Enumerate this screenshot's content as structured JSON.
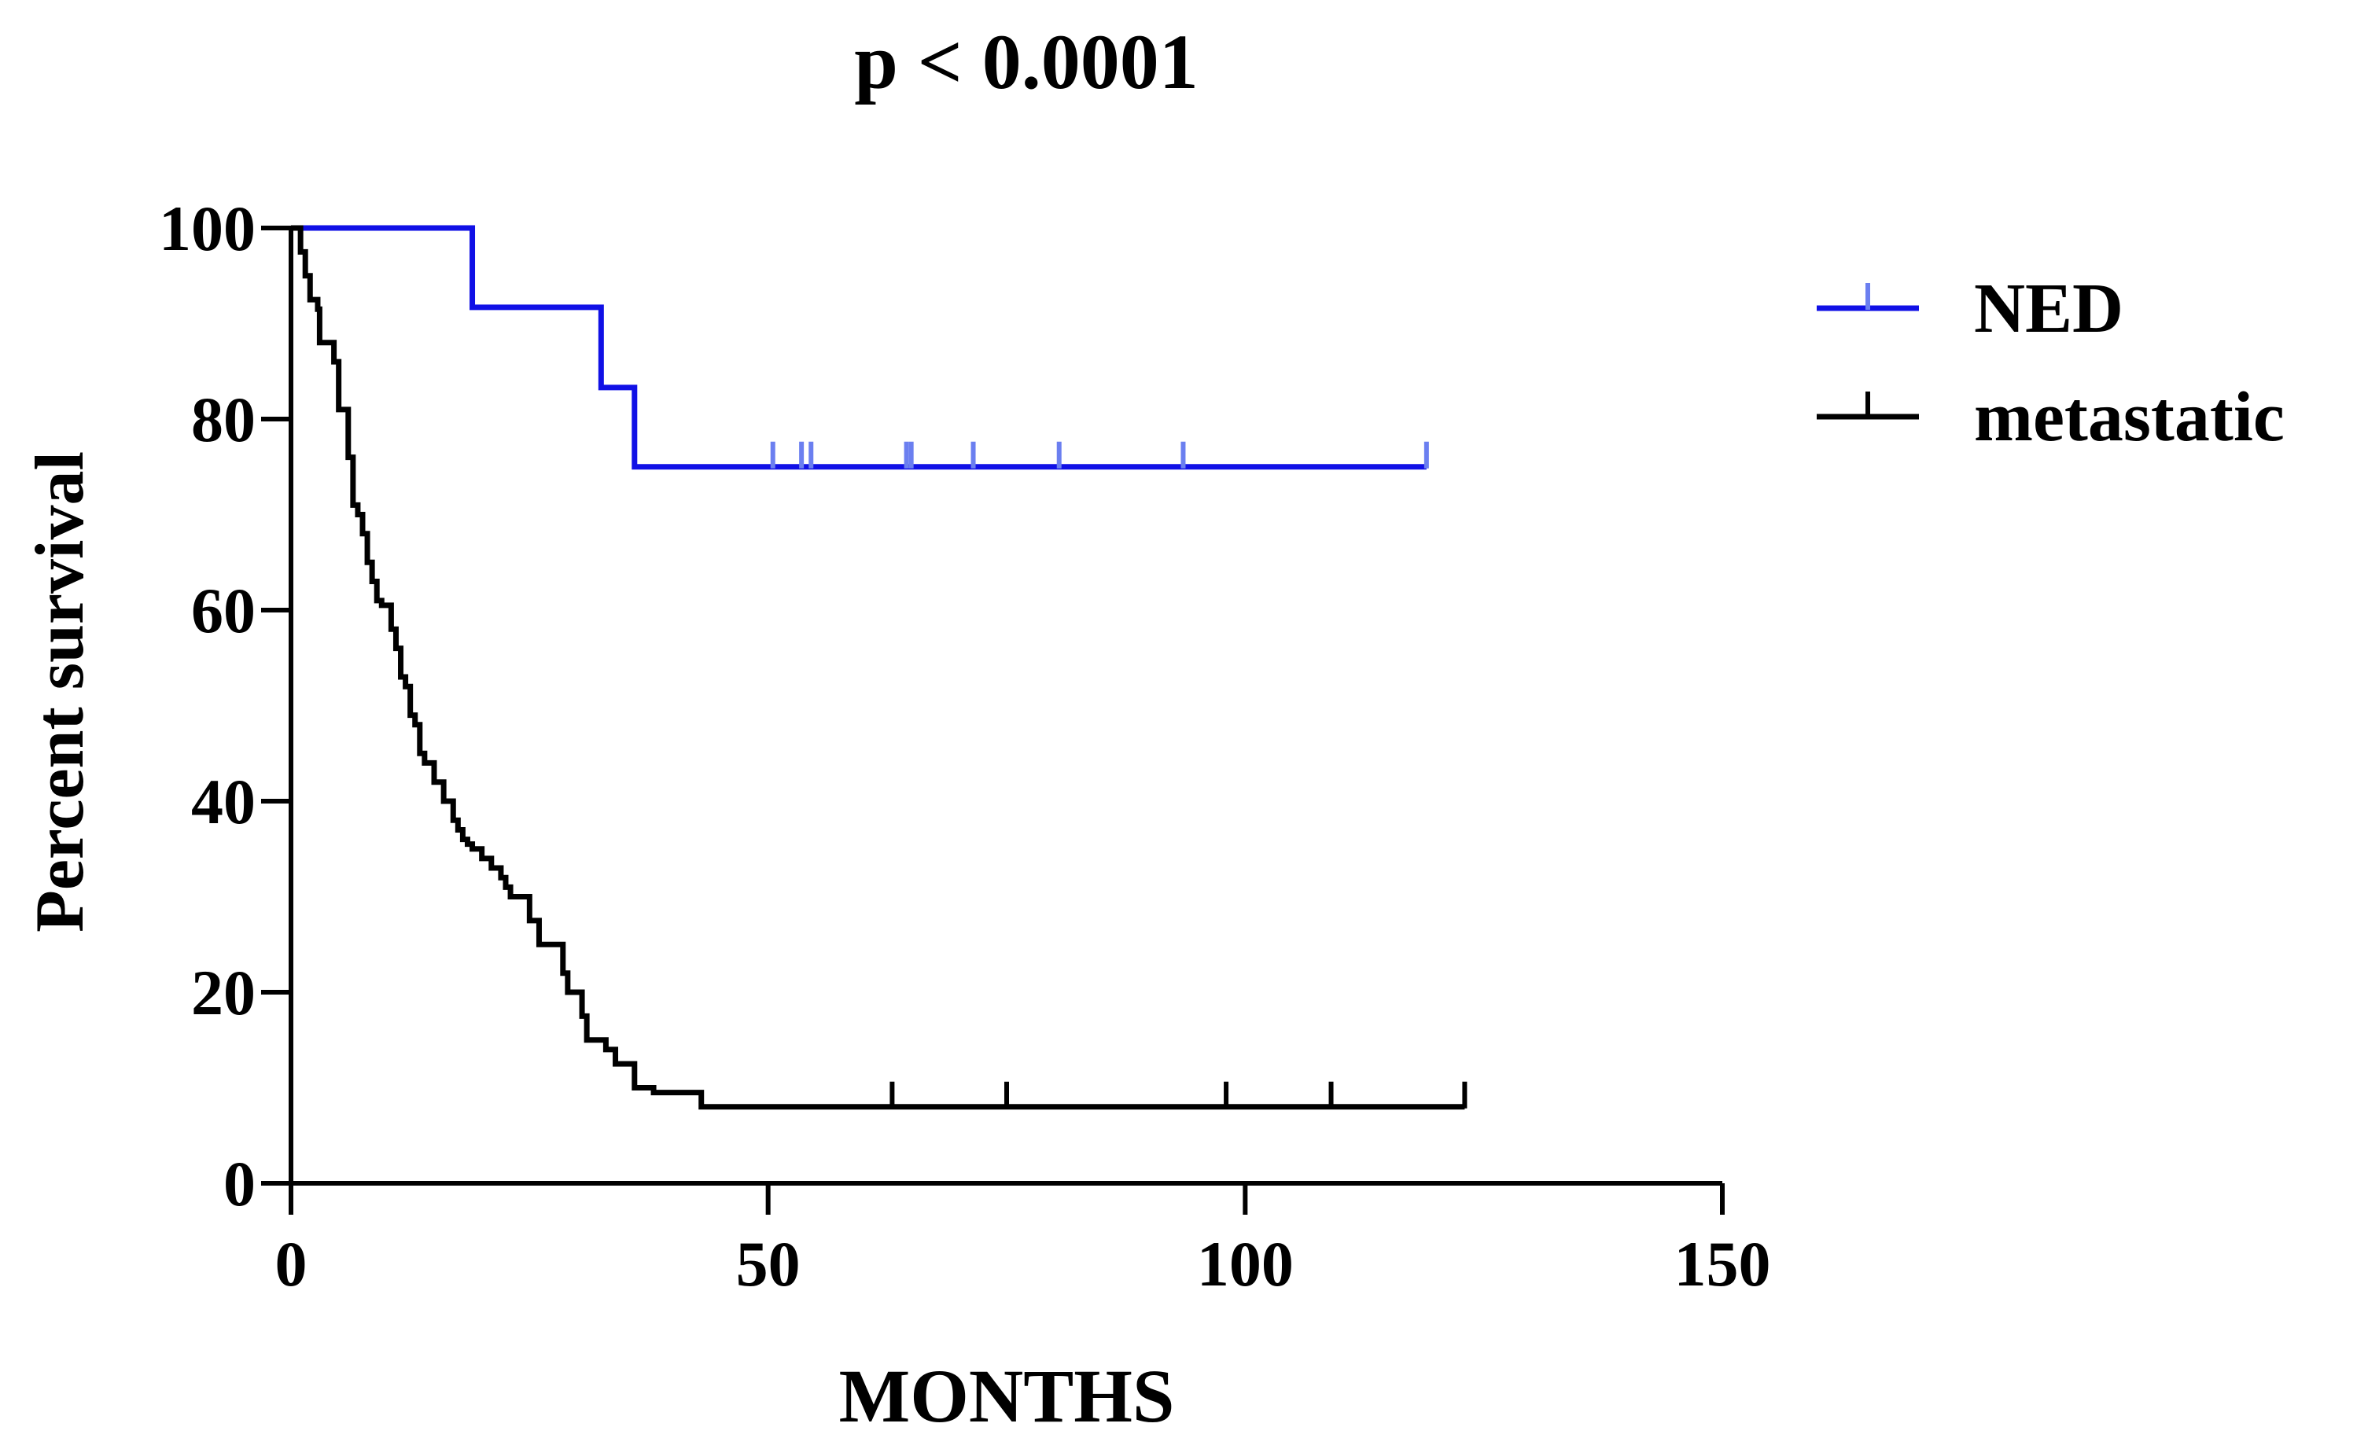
{
  "colors": {
    "ned": "#1010e6",
    "metastatic": "#000000",
    "axis": "#000000",
    "censor_ned": "#6b7ff0"
  },
  "chart_data": {
    "type": "line",
    "title": "p < 0.0001",
    "xlabel": "MONTHS",
    "ylabel": "Percent survival",
    "xlim": [
      0,
      150
    ],
    "ylim": [
      0,
      100
    ],
    "xticks": [
      0,
      50,
      100,
      150
    ],
    "yticks": [
      0,
      20,
      40,
      60,
      80,
      100
    ],
    "grid": false,
    "legend_position": "top-right",
    "step": true,
    "series": [
      {
        "name": "NED",
        "color": "#1010e6",
        "x": [
          0,
          19,
          32.5,
          36,
          119
        ],
        "y": [
          100,
          91.7,
          83.3,
          75,
          75
        ],
        "censored": [
          [
            50.5,
            75
          ],
          [
            53.5,
            75
          ],
          [
            54.5,
            75
          ],
          [
            64.5,
            75
          ],
          [
            65,
            75
          ],
          [
            71.5,
            75
          ],
          [
            80.5,
            75
          ],
          [
            93.5,
            75
          ],
          [
            119,
            75
          ]
        ]
      },
      {
        "name": "metastatic",
        "color": "#000000",
        "x": [
          0,
          1,
          1.5,
          2,
          2.8,
          3,
          4.5,
          5,
          6,
          6.5,
          7,
          7.5,
          8,
          8.5,
          9,
          9.5,
          10.5,
          11,
          11.5,
          12,
          12.5,
          13,
          13.5,
          14,
          15,
          16,
          17,
          17.5,
          18,
          18.5,
          19,
          20,
          21,
          22,
          22.5,
          23,
          25,
          26,
          28.5,
          29,
          30.5,
          31,
          33,
          34,
          36,
          38,
          43,
          123
        ],
        "y": [
          100,
          97.5,
          95,
          92.5,
          91.5,
          88,
          86,
          81,
          76,
          71,
          70,
          68,
          65,
          63,
          61,
          60.5,
          58,
          56,
          53,
          52,
          49,
          48,
          45,
          44,
          42,
          40,
          38,
          37,
          36,
          35.5,
          35,
          34,
          33,
          32,
          31,
          30,
          27.5,
          25,
          22,
          20,
          17.5,
          15,
          14,
          12.5,
          10,
          9.5,
          8,
          8
        ],
        "censored": [
          [
            63,
            8
          ],
          [
            75,
            8
          ],
          [
            98,
            8
          ],
          [
            109,
            8
          ],
          [
            123,
            8
          ]
        ]
      }
    ]
  }
}
